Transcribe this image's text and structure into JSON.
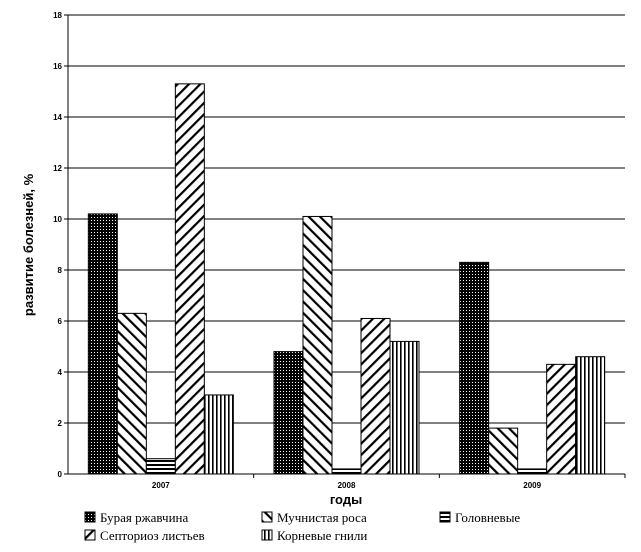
{
  "chart_data": {
    "type": "bar",
    "categories": [
      "2007",
      "2008",
      "2009"
    ],
    "series": [
      {
        "name": "Бурая ржавчина",
        "values": [
          10.2,
          4.8,
          8.3
        ],
        "pattern": "dots"
      },
      {
        "name": "Мучнистая  роса",
        "values": [
          6.3,
          10.1,
          1.8
        ],
        "pattern": "backslash"
      },
      {
        "name": "Головневые",
        "values": [
          0.6,
          0.2,
          0.2
        ],
        "pattern": "horizontal"
      },
      {
        "name": "Септориоз листьев",
        "values": [
          15.3,
          6.1,
          4.3
        ],
        "pattern": "slash"
      },
      {
        "name": "Корневые гнили",
        "values": [
          3.1,
          5.2,
          4.6
        ],
        "pattern": "vertical"
      }
    ],
    "xlabel": "годы",
    "ylabel": "развитие болезней, %",
    "ylim": [
      0,
      18
    ],
    "yticks": [
      "0",
      "2",
      "4",
      "6",
      "8",
      "10",
      "12",
      "14",
      "16",
      "18"
    ],
    "grid": true,
    "legend_position": "bottom"
  }
}
